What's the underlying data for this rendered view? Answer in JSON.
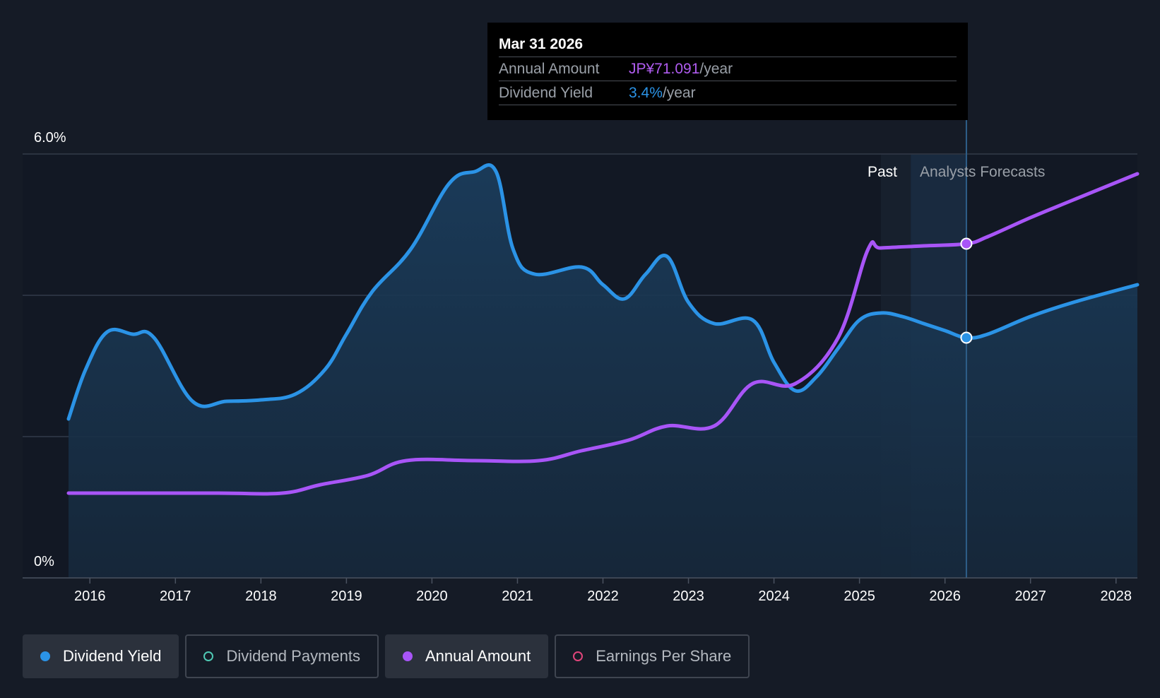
{
  "tooltip": {
    "date": "Mar 31 2026",
    "rows": [
      {
        "label": "Annual Amount",
        "value": "JP¥71.091",
        "unit": "/year"
      },
      {
        "label": "Dividend Yield",
        "value": "3.4%",
        "unit": "/year"
      }
    ]
  },
  "regions": {
    "past": "Past",
    "forecast": "Analysts Forecasts"
  },
  "legend": [
    {
      "label": "Dividend Yield",
      "color": "#2b93e6",
      "active": true,
      "filled": true
    },
    {
      "label": "Dividend Payments",
      "color": "#4fc9b4",
      "active": false,
      "filled": false
    },
    {
      "label": "Annual Amount",
      "color": "#a855f7",
      "active": true,
      "filled": true
    },
    {
      "label": "Earnings Per Share",
      "color": "#e0457b",
      "active": false,
      "filled": false
    }
  ],
  "colors": {
    "yield_line": "#2b93e6",
    "amount_line": "#a855f7",
    "grid": "#3a4250",
    "background": "#151b26"
  },
  "chart_data": {
    "type": "line",
    "title": "",
    "xlabel": "",
    "ylabel": "",
    "y_tick_labels": [
      "0%",
      "6.0%"
    ],
    "ylim": [
      0,
      6.0
    ],
    "xlim": [
      2015.75,
      2028.25
    ],
    "x_ticks": [
      2016,
      2017,
      2018,
      2019,
      2020,
      2021,
      2022,
      2023,
      2024,
      2025,
      2026,
      2027,
      2028
    ],
    "grid": true,
    "forecast_start": 2025.25,
    "highlight_date": 2026.25,
    "series": [
      {
        "name": "Dividend Yield",
        "unit": "%",
        "points": [
          [
            2015.75,
            2.25
          ],
          [
            2015.95,
            2.95
          ],
          [
            2016.2,
            3.48
          ],
          [
            2016.5,
            3.45
          ],
          [
            2016.75,
            3.4
          ],
          [
            2017.2,
            2.5
          ],
          [
            2017.6,
            2.5
          ],
          [
            2018.0,
            2.52
          ],
          [
            2018.4,
            2.6
          ],
          [
            2018.75,
            2.95
          ],
          [
            2019.0,
            3.45
          ],
          [
            2019.3,
            4.05
          ],
          [
            2019.75,
            4.65
          ],
          [
            2020.2,
            5.58
          ],
          [
            2020.5,
            5.75
          ],
          [
            2020.75,
            5.75
          ],
          [
            2020.95,
            4.65
          ],
          [
            2021.2,
            4.3
          ],
          [
            2021.75,
            4.4
          ],
          [
            2022.0,
            4.15
          ],
          [
            2022.25,
            3.95
          ],
          [
            2022.5,
            4.3
          ],
          [
            2022.75,
            4.55
          ],
          [
            2023.0,
            3.9
          ],
          [
            2023.3,
            3.6
          ],
          [
            2023.75,
            3.65
          ],
          [
            2024.0,
            3.05
          ],
          [
            2024.25,
            2.65
          ],
          [
            2024.5,
            2.85
          ],
          [
            2024.75,
            3.25
          ],
          [
            2025.0,
            3.65
          ],
          [
            2025.25,
            3.75
          ],
          [
            2025.5,
            3.7
          ],
          [
            2025.75,
            3.6
          ],
          [
            2026.0,
            3.5
          ],
          [
            2026.25,
            3.4
          ],
          [
            2026.5,
            3.45
          ],
          [
            2027.0,
            3.7
          ],
          [
            2027.5,
            3.9
          ],
          [
            2028.25,
            4.15
          ]
        ]
      },
      {
        "name": "Annual Amount",
        "unit": "JP¥",
        "points": [
          [
            2015.75,
            1.2
          ],
          [
            2016.5,
            1.2
          ],
          [
            2017.5,
            1.2
          ],
          [
            2018.25,
            1.2
          ],
          [
            2018.7,
            1.32
          ],
          [
            2019.25,
            1.45
          ],
          [
            2019.7,
            1.66
          ],
          [
            2020.5,
            1.66
          ],
          [
            2021.25,
            1.66
          ],
          [
            2021.75,
            1.8
          ],
          [
            2022.3,
            1.95
          ],
          [
            2022.75,
            2.15
          ],
          [
            2023.3,
            2.15
          ],
          [
            2023.75,
            2.75
          ],
          [
            2024.25,
            2.75
          ],
          [
            2024.75,
            3.4
          ],
          [
            2025.1,
            4.65
          ],
          [
            2025.25,
            4.67
          ],
          [
            2025.75,
            4.7
          ],
          [
            2026.25,
            4.73
          ],
          [
            2026.5,
            4.83
          ],
          [
            2027.0,
            5.1
          ],
          [
            2027.5,
            5.35
          ],
          [
            2028.25,
            5.72
          ]
        ]
      }
    ]
  }
}
